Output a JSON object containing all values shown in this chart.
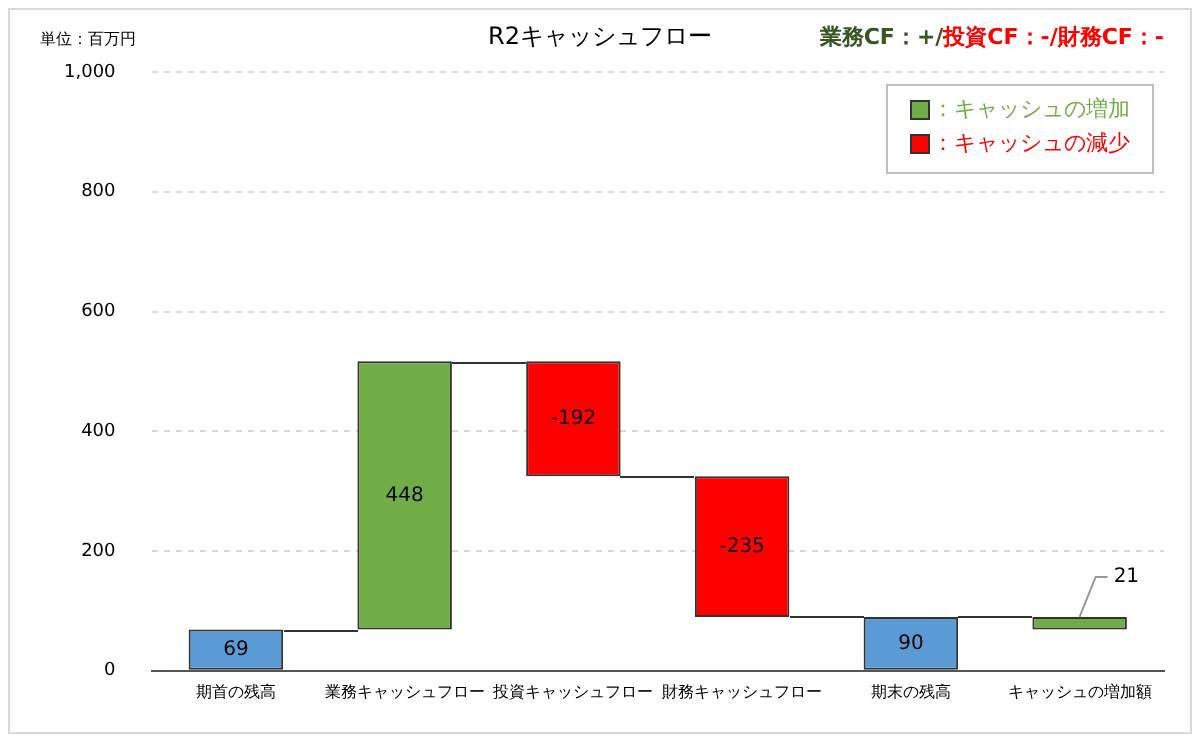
{
  "chart_data": {
    "type": "bar",
    "title": "R2キャッシュフロー",
    "annotations": [
      "単位：百万円",
      "業務CF：+/",
      "投資CF：-/財務CF：-"
    ],
    "categories": [
      "期首の残高",
      "業務キャッシュフロー",
      "投資キャッシュフロー",
      "財務キャッシュフロー",
      "期末の残高",
      "キャッシュの増加額"
    ],
    "series": [
      {
        "color": "#5b9bd5",
        "values": [
          69,
          null,
          null,
          null,
          90,
          null
        ],
        "base": [
          0,
          null,
          null,
          null,
          0,
          null
        ]
      },
      {
        "name": "：キャッシュの増加",
        "color": "#70ad47",
        "values": [
          null,
          448,
          null,
          null,
          null,
          21
        ],
        "base": [
          null,
          69,
          null,
          null,
          null,
          69
        ]
      },
      {
        "name": "：キャッシュの減少",
        "color": "#ff0000",
        "values": [
          null,
          null,
          -192,
          -235,
          null,
          null
        ],
        "base": [
          null,
          null,
          517,
          325,
          null,
          null
        ]
      }
    ],
    "ylim": [
      0,
      1000
    ],
    "yticks": [
      0,
      200,
      400,
      600,
      800,
      {
        "value": 1000,
        "label": "1,000"
      }
    ],
    "grid": "y",
    "legend": "top right",
    "data_labels": true
  }
}
